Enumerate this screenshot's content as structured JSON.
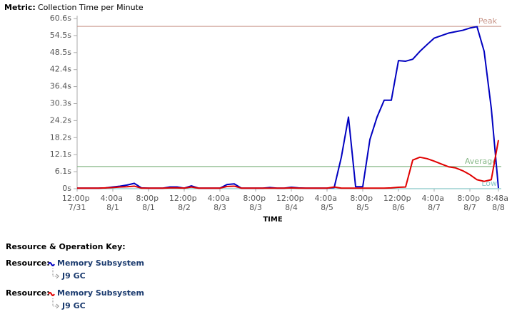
{
  "chart_data": {
    "type": "line",
    "metric_label": "Metric:",
    "title": "Collection Time per Minute",
    "x_label": "TIME",
    "xlim": [
      0,
      188.8
    ],
    "xticks": [
      {
        "value": 0,
        "label": "12:00p 7/31"
      },
      {
        "value": 16,
        "label": "4:00a 8/1"
      },
      {
        "value": 32,
        "label": "8:00p 8/1"
      },
      {
        "value": 48,
        "label": "12:00p 8/2"
      },
      {
        "value": 64,
        "label": "4:00a 8/3"
      },
      {
        "value": 80,
        "label": "8:00p 8/3"
      },
      {
        "value": 96,
        "label": "12:00p 8/4"
      },
      {
        "value": 112,
        "label": "4:00a 8/5"
      },
      {
        "value": 128,
        "label": "8:00p 8/5"
      },
      {
        "value": 144,
        "label": "12:00p 8/6"
      },
      {
        "value": 160,
        "label": "4:00a 8/7"
      },
      {
        "value": 176,
        "label": "8:00p 8/7"
      },
      {
        "value": 188.8,
        "label": "8:48a 8/8"
      }
    ],
    "ylim": [
      0,
      60.6
    ],
    "yticks": [
      {
        "value": 0,
        "label": "0s"
      },
      {
        "value": 6.06,
        "label": "6.1s"
      },
      {
        "value": 12.12,
        "label": "12.1s"
      },
      {
        "value": 18.18,
        "label": "18.2s"
      },
      {
        "value": 24.24,
        "label": "24.2s"
      },
      {
        "value": 30.3,
        "label": "30.3s"
      },
      {
        "value": 36.36,
        "label": "36.4s"
      },
      {
        "value": 42.42,
        "label": "42.4s"
      },
      {
        "value": 48.48,
        "label": "48.5s"
      },
      {
        "value": 54.54,
        "label": "54.5s"
      },
      {
        "value": 60.6,
        "label": "60.6s"
      }
    ],
    "grid": false,
    "x": [
      0,
      3.2,
      6.4,
      9.6,
      12.8,
      16,
      19.2,
      22.4,
      25.6,
      28.8,
      32,
      35.2,
      38.4,
      41.6,
      44.8,
      48,
      51.2,
      54.4,
      57.6,
      60.8,
      64,
      67.2,
      70.4,
      73.6,
      76.8,
      80,
      83.2,
      86.4,
      89.6,
      92.8,
      96,
      99.2,
      102.4,
      105.6,
      108.8,
      112,
      115.2,
      118.4,
      121.6,
      124.8,
      128,
      131.2,
      134.4,
      137.6,
      140.8,
      144,
      147.2,
      150.4,
      153.6,
      156.8,
      160,
      163.2,
      166.4,
      169.6,
      172.8,
      176,
      179.2,
      182.4,
      185.6,
      188.8
    ],
    "series": [
      {
        "name": "Memory Subsystem",
        "operation": "J9 GC",
        "resource_label": "Resource:",
        "color": "#0000c0",
        "values": [
          0.2,
          0.2,
          0.2,
          0.2,
          0.3,
          0.6,
          0.9,
          1.3,
          1.9,
          0.3,
          0.2,
          0.2,
          0.2,
          0.6,
          0.6,
          0.2,
          1.0,
          0.2,
          0.2,
          0.2,
          0.2,
          1.5,
          1.7,
          0.2,
          0.2,
          0.2,
          0.2,
          0.4,
          0.2,
          0.2,
          0.5,
          0.3,
          0.2,
          0.2,
          0.2,
          0.2,
          0.4,
          11.2,
          25.5,
          0.7,
          0.7,
          17.5,
          25.5,
          31.5,
          31.5,
          45.6,
          45.4,
          46.1,
          48.9,
          51.3,
          53.6,
          54.5,
          55.4,
          55.9,
          56.4,
          57.2,
          57.7,
          48.9,
          28.6,
          0.2
        ]
      },
      {
        "name": "Memory Subsystem",
        "operation": "J9 GC",
        "resource_label": "Resource:",
        "color": "#e00000",
        "values": [
          0.2,
          0.2,
          0.2,
          0.2,
          0.3,
          0.4,
          0.6,
          0.7,
          0.9,
          0.2,
          0.2,
          0.2,
          0.2,
          0.3,
          0.3,
          0.2,
          0.6,
          0.2,
          0.2,
          0.2,
          0.2,
          0.8,
          0.9,
          0.2,
          0.2,
          0.2,
          0.2,
          0.2,
          0.2,
          0.2,
          0.3,
          0.2,
          0.2,
          0.2,
          0.2,
          0.2,
          0.6,
          0.2,
          0.2,
          0.2,
          0.2,
          0.2,
          0.2,
          0.2,
          0.3,
          0.5,
          0.6,
          10.2,
          11.2,
          10.7,
          9.8,
          8.8,
          7.8,
          7.4,
          6.4,
          5.0,
          3.2,
          2.6,
          3.2,
          17.3
        ]
      }
    ],
    "reference_lines": [
      {
        "label": "Peak",
        "value": 57.8,
        "color": "#c89488"
      },
      {
        "label": "Average",
        "value": 7.9,
        "color": "#88b888"
      },
      {
        "label": "Low",
        "value": 0,
        "color": "#88c8c8"
      }
    ],
    "key_title": "Resource & Operation Key:"
  }
}
